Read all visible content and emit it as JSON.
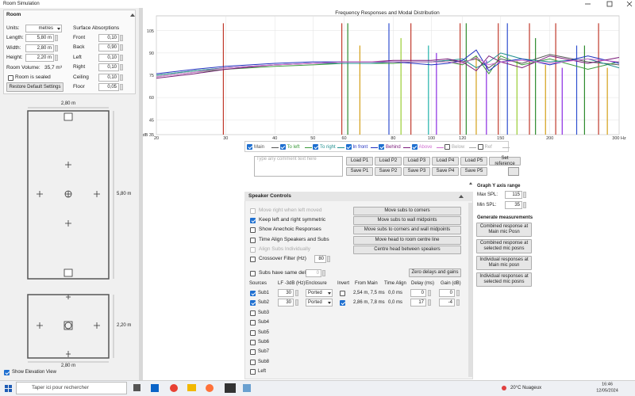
{
  "window": {
    "title": "Room Simulation"
  },
  "room": {
    "header": "Room",
    "units_label": "Units:",
    "units": "metres",
    "absorptions_label": "Surface Absorptions",
    "dims": [
      {
        "label": "Length:",
        "value": "5,80 m"
      },
      {
        "label": "Width:",
        "value": "2,80 m"
      },
      {
        "label": "Height:",
        "value": "2,20 m"
      }
    ],
    "volume_label": "Room Volume:",
    "volume": "35,7 m³",
    "sealed": "Room is sealed",
    "restore": "Restore Default Settings",
    "surfaces": [
      {
        "label": "Front",
        "value": "0,10"
      },
      {
        "label": "Back",
        "value": "0,90"
      },
      {
        "label": "Left",
        "value": "0,10"
      },
      {
        "label": "Right",
        "value": "0,10"
      },
      {
        "label": "Ceiling",
        "value": "0,10"
      },
      {
        "label": "Floor",
        "value": "0,05"
      }
    ],
    "plan_width": "2,80 m",
    "plan_length": "5,80 m",
    "elev_height": "2,20 m",
    "elev_width": "2,80 m",
    "show_elevation": "Show Elevation View"
  },
  "chart_data": {
    "type": "line",
    "title": "Frequency Responses and Modal Distribution",
    "xscale": "log",
    "grid": true,
    "xlim": [
      20,
      300
    ],
    "xticks": [
      20,
      30,
      40,
      50,
      60,
      80,
      100,
      120,
      150,
      200,
      {
        "value": 300,
        "label": "300 Hz"
      }
    ],
    "ylim": [
      35,
      115
    ],
    "yticks": [
      {
        "value": 35,
        "label": "dB 35"
      },
      45,
      60,
      75,
      90,
      105
    ],
    "x": [
      20,
      25,
      30,
      40,
      50,
      60,
      70,
      80,
      90,
      100,
      110,
      120,
      130,
      140,
      150,
      170,
      200,
      250,
      300
    ],
    "series": [
      {
        "name": "Main",
        "color": "#555555",
        "checked": true,
        "values": [
          75,
          78,
          80,
          82,
          83,
          84,
          84,
          84,
          84,
          84,
          85,
          84,
          86,
          80,
          86,
          83,
          89,
          84,
          82
        ]
      },
      {
        "name": "To left",
        "color": "#3a9a3a",
        "checked": true,
        "values": [
          74,
          77,
          79,
          81,
          82,
          83,
          83,
          83,
          84,
          84,
          84,
          82,
          88,
          76,
          88,
          82,
          86,
          79,
          84
        ]
      },
      {
        "name": "To right",
        "color": "#1f8f8f",
        "checked": true,
        "values": [
          75,
          78,
          80,
          82,
          83,
          83,
          83,
          84,
          84,
          84,
          85,
          86,
          80,
          84,
          90,
          86,
          84,
          86,
          80
        ]
      },
      {
        "name": "In front",
        "color": "#2030c0",
        "checked": true,
        "values": [
          76,
          79,
          81,
          83,
          84,
          84,
          84,
          84,
          83,
          82,
          83,
          85,
          92,
          78,
          84,
          86,
          82,
          88,
          83
        ]
      },
      {
        "name": "Behind",
        "color": "#7a1a7a",
        "checked": true,
        "values": [
          73,
          76,
          79,
          82,
          83,
          84,
          84,
          85,
          85,
          85,
          86,
          84,
          78,
          88,
          84,
          80,
          88,
          83,
          87
        ]
      },
      {
        "name": "Above",
        "color": "#d070d0",
        "checked": true,
        "values": [
          74,
          77,
          80,
          82,
          83,
          84,
          84,
          84,
          84,
          84,
          84,
          83,
          87,
          82,
          84,
          85,
          83,
          86,
          84
        ]
      },
      {
        "name": "Below",
        "color": "#aaaaaa",
        "checked": false
      },
      {
        "name": "Ref",
        "color": "#bbbbbb",
        "checked": false
      }
    ],
    "modes": [
      {
        "f": 29.6,
        "level": 110,
        "color": "#c0392b"
      },
      {
        "f": 59.2,
        "level": 110,
        "color": "#c0392b"
      },
      {
        "f": 61.3,
        "level": 110,
        "color": "#2e8b2e"
      },
      {
        "f": 65.8,
        "level": 95,
        "color": "#d4a017"
      },
      {
        "f": 78,
        "level": 110,
        "color": "#3050d0"
      },
      {
        "f": 83.7,
        "level": 100,
        "color": "#9acd32"
      },
      {
        "f": 88.7,
        "level": 110,
        "color": "#c0392b"
      },
      {
        "f": 98.3,
        "level": 95,
        "color": "#20b2aa"
      },
      {
        "f": 103,
        "level": 90,
        "color": "#8a2be2"
      },
      {
        "f": 118.3,
        "level": 110,
        "color": "#c0392b"
      },
      {
        "f": 122.6,
        "level": 110,
        "color": "#2e8b2e"
      },
      {
        "f": 130,
        "level": 88,
        "color": "#d4a017"
      },
      {
        "f": 138,
        "level": 85,
        "color": "#8a2be2"
      },
      {
        "f": 147.9,
        "level": 110,
        "color": "#c0392b"
      },
      {
        "f": 156,
        "level": 110,
        "color": "#3050d0"
      },
      {
        "f": 165,
        "level": 85,
        "color": "#9acd32"
      },
      {
        "f": 177.5,
        "level": 110,
        "color": "#c0392b"
      },
      {
        "f": 183.9,
        "level": 100,
        "color": "#2e8b2e"
      },
      {
        "f": 195,
        "level": 82,
        "color": "#d4a017"
      },
      {
        "f": 207,
        "level": 110,
        "color": "#c0392b"
      },
      {
        "f": 215,
        "level": 80,
        "color": "#8a2be2"
      },
      {
        "f": 234,
        "level": 95,
        "color": "#3050d0"
      },
      {
        "f": 245,
        "level": 95,
        "color": "#2e8b2e"
      },
      {
        "f": 266,
        "level": 110,
        "color": "#c0392b"
      },
      {
        "f": 280,
        "level": 80,
        "color": "#d4a017"
      }
    ]
  },
  "toolbar": {
    "comment_placeholder": "Type any comment text here",
    "load": [
      "Load P1",
      "Load P2",
      "Load P3",
      "Load P4",
      "Load P5"
    ],
    "save": [
      "Save P1",
      "Save P2",
      "Save P3",
      "Save P4",
      "Save P5"
    ],
    "set_reference": "Set reference"
  },
  "speaker_controls": {
    "header": "Speaker Controls",
    "options": [
      {
        "label": "Move right when left moved",
        "checked": false,
        "enabled": false
      },
      {
        "label": "Keep left and right symmetric",
        "checked": true,
        "enabled": true
      },
      {
        "label": "Show Anechoic Responses",
        "checked": false,
        "enabled": true
      },
      {
        "label": "Time Align Speakers and Subs",
        "checked": false,
        "enabled": true
      },
      {
        "label": "Align Subs Individually",
        "checked": false,
        "enabled": false
      },
      {
        "label": "Crossover Filter (Hz)",
        "checked": false,
        "enabled": true,
        "value": 80
      }
    ],
    "buttons": [
      "Move subs to corners",
      "Move subs to wall midpoints",
      "Move subs to corners and wall midpoints",
      "Move head to room centre line",
      "Centre head between speakers"
    ],
    "same_delay": {
      "label": "Subs have same delay",
      "value": 0
    },
    "zero_button": "Zero delays and gains",
    "columns": [
      "Sources",
      "LF -3dB (Hz)",
      "Enclosure",
      "Invert",
      "From Main",
      "Time Align",
      "Delay (ms)",
      "Gain (dB)"
    ],
    "sources": [
      {
        "name": "Sub1",
        "checked": true,
        "lf": 30,
        "enclosure": "Ported",
        "invert": false,
        "from_main": "2,54 m, 7,5 ms",
        "time_align": "0,0 ms",
        "delay": 0,
        "gain": 0
      },
      {
        "name": "Sub2",
        "checked": true,
        "lf": 30,
        "enclosure": "Ported",
        "invert": true,
        "from_main": "2,86 m, 7,8 ms",
        "time_align": "0,0 ms",
        "delay": 17,
        "gain": -4
      },
      {
        "name": "Sub3",
        "checked": false
      },
      {
        "name": "Sub4",
        "checked": false
      },
      {
        "name": "Sub5",
        "checked": false
      },
      {
        "name": "Sub6",
        "checked": false
      },
      {
        "name": "Sub7",
        "checked": false
      },
      {
        "name": "Sub8",
        "checked": false
      },
      {
        "name": "Left",
        "checked": false
      }
    ]
  },
  "graph_panel": {
    "title": "Graph Y axis range",
    "max_label": "Max SPL:",
    "max": 115,
    "min_label": "Min SPL:",
    "min": 35,
    "gen_title": "Generate measurements",
    "buttons": [
      "Combined response at Main mic Posn",
      "Combined response at selected mic posns",
      "Individual responses at Main mic posn",
      "Individual responses at selected mic posns"
    ]
  },
  "taskbar": {
    "search": "Taper ici pour rechercher",
    "weather": "20°C Nuageux",
    "time": "16:46",
    "date": "12/05/2024"
  }
}
